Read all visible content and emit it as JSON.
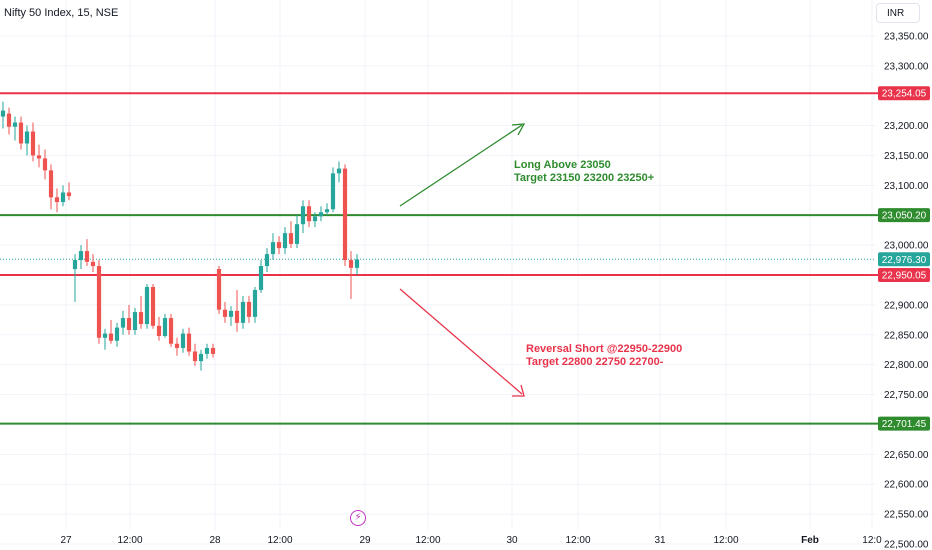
{
  "header": {
    "symbol": "Nifty 50 Index, 15, NSE",
    "currency": "INR"
  },
  "colors": {
    "up": "#26a69a",
    "down": "#ef5350",
    "red_line": "#e8334a",
    "green_line": "#2e8b2e",
    "current": "#26a69a",
    "grid": "#f0f3fa",
    "axis_text": "#131722"
  },
  "chart_data": {
    "type": "candlestick",
    "ylim": [
      22490,
      23410
    ],
    "y_ticks": [
      "23,350.00",
      "23,300.00",
      "23,200.00",
      "23,150.00",
      "23,100.00",
      "23,000.00",
      "22,900.00",
      "22,850.00",
      "22,800.00",
      "22,750.00",
      "22,650.00",
      "22,600.00",
      "22,550.00",
      "22,500.00"
    ],
    "y_tick_values": [
      23350,
      23300,
      23200,
      23150,
      23100,
      23000,
      22900,
      22850,
      22800,
      22750,
      22650,
      22600,
      22550,
      22500
    ],
    "x_ticks": [
      "27",
      "12:00",
      "28",
      "12:00",
      "29",
      "12:00",
      "30",
      "12:00",
      "31",
      "12:00",
      "Feb",
      "12:0"
    ],
    "levels": [
      {
        "label": "23,254.05",
        "value": 23254.05,
        "color": "red"
      },
      {
        "label": "23,050.20",
        "value": 23050.2,
        "color": "green"
      },
      {
        "label": "22,950.05",
        "value": 22950.05,
        "color": "red"
      },
      {
        "label": "22,701.45",
        "value": 22701.45,
        "color": "green"
      }
    ],
    "current_price": {
      "label": "22,976.30",
      "value": 22976.3
    },
    "candles": [
      {
        "o": 23215,
        "h": 23240,
        "l": 23195,
        "c": 23225
      },
      {
        "o": 23220,
        "h": 23230,
        "l": 23185,
        "c": 23198
      },
      {
        "o": 23198,
        "h": 23215,
        "l": 23175,
        "c": 23205
      },
      {
        "o": 23205,
        "h": 23215,
        "l": 23160,
        "c": 23170
      },
      {
        "o": 23170,
        "h": 23200,
        "l": 23150,
        "c": 23190
      },
      {
        "o": 23190,
        "h": 23205,
        "l": 23140,
        "c": 23150
      },
      {
        "o": 23150,
        "h": 23168,
        "l": 23130,
        "c": 23145
      },
      {
        "o": 23145,
        "h": 23160,
        "l": 23110,
        "c": 23125
      },
      {
        "o": 23125,
        "h": 23135,
        "l": 23060,
        "c": 23080
      },
      {
        "o": 23080,
        "h": 23095,
        "l": 23055,
        "c": 23072
      },
      {
        "o": 23072,
        "h": 23100,
        "l": 23065,
        "c": 23088
      },
      {
        "o": 23088,
        "h": 23105,
        "l": 23075,
        "c": 23082
      },
      {
        "o": 22960,
        "h": 22985,
        "l": 22905,
        "c": 22975
      },
      {
        "o": 22975,
        "h": 23000,
        "l": 22960,
        "c": 22990
      },
      {
        "o": 22990,
        "h": 23010,
        "l": 22965,
        "c": 22972
      },
      {
        "o": 22972,
        "h": 22985,
        "l": 22955,
        "c": 22965
      },
      {
        "o": 22965,
        "h": 22975,
        "l": 22835,
        "c": 22845
      },
      {
        "o": 22845,
        "h": 22860,
        "l": 22825,
        "c": 22852
      },
      {
        "o": 22852,
        "h": 22875,
        "l": 22835,
        "c": 22840
      },
      {
        "o": 22840,
        "h": 22870,
        "l": 22830,
        "c": 22862
      },
      {
        "o": 22862,
        "h": 22890,
        "l": 22850,
        "c": 22878
      },
      {
        "o": 22878,
        "h": 22900,
        "l": 22850,
        "c": 22858
      },
      {
        "o": 22858,
        "h": 22895,
        "l": 22850,
        "c": 22888
      },
      {
        "o": 22888,
        "h": 22915,
        "l": 22860,
        "c": 22868
      },
      {
        "o": 22868,
        "h": 22935,
        "l": 22860,
        "c": 22930
      },
      {
        "o": 22930,
        "h": 22935,
        "l": 22860,
        "c": 22865
      },
      {
        "o": 22865,
        "h": 22880,
        "l": 22840,
        "c": 22848
      },
      {
        "o": 22848,
        "h": 22885,
        "l": 22845,
        "c": 22878
      },
      {
        "o": 22878,
        "h": 22885,
        "l": 22830,
        "c": 22835
      },
      {
        "o": 22835,
        "h": 22845,
        "l": 22815,
        "c": 22828
      },
      {
        "o": 22828,
        "h": 22860,
        "l": 22820,
        "c": 22852
      },
      {
        "o": 22852,
        "h": 22862,
        "l": 22815,
        "c": 22822
      },
      {
        "o": 22822,
        "h": 22835,
        "l": 22798,
        "c": 22806
      },
      {
        "o": 22806,
        "h": 22825,
        "l": 22790,
        "c": 22818
      },
      {
        "o": 22818,
        "h": 22835,
        "l": 22810,
        "c": 22828
      },
      {
        "o": 22828,
        "h": 22835,
        "l": 22812,
        "c": 22818
      },
      {
        "o": 22960,
        "h": 22965,
        "l": 22885,
        "c": 22892
      },
      {
        "o": 22892,
        "h": 22905,
        "l": 22870,
        "c": 22880
      },
      {
        "o": 22880,
        "h": 22898,
        "l": 22865,
        "c": 22890
      },
      {
        "o": 22890,
        "h": 22925,
        "l": 22855,
        "c": 22870
      },
      {
        "o": 22870,
        "h": 22915,
        "l": 22860,
        "c": 22905
      },
      {
        "o": 22905,
        "h": 22915,
        "l": 22870,
        "c": 22880
      },
      {
        "o": 22880,
        "h": 22930,
        "l": 22870,
        "c": 22925
      },
      {
        "o": 22925,
        "h": 22975,
        "l": 22920,
        "c": 22965
      },
      {
        "o": 22965,
        "h": 22995,
        "l": 22955,
        "c": 22985
      },
      {
        "o": 22985,
        "h": 23020,
        "l": 22975,
        "c": 23005
      },
      {
        "o": 23005,
        "h": 23015,
        "l": 22985,
        "c": 22995
      },
      {
        "o": 22995,
        "h": 23030,
        "l": 22985,
        "c": 23020
      },
      {
        "o": 23020,
        "h": 23040,
        "l": 22995,
        "c": 23002
      },
      {
        "o": 23002,
        "h": 23050,
        "l": 22995,
        "c": 23035
      },
      {
        "o": 23035,
        "h": 23075,
        "l": 23020,
        "c": 23065
      },
      {
        "o": 23065,
        "h": 23075,
        "l": 23030,
        "c": 23040
      },
      {
        "o": 23040,
        "h": 23055,
        "l": 23030,
        "c": 23048
      },
      {
        "o": 23048,
        "h": 23065,
        "l": 23040,
        "c": 23055
      },
      {
        "o": 23055,
        "h": 23070,
        "l": 23050,
        "c": 23060
      },
      {
        "o": 23060,
        "h": 23130,
        "l": 23055,
        "c": 23120
      },
      {
        "o": 23120,
        "h": 23140,
        "l": 23105,
        "c": 23128
      },
      {
        "o": 23128,
        "h": 23135,
        "l": 22965,
        "c": 22975
      },
      {
        "o": 22975,
        "h": 22990,
        "l": 22910,
        "c": 22962
      },
      {
        "o": 22962,
        "h": 22985,
        "l": 22950,
        "c": 22976
      }
    ]
  },
  "annotations": {
    "long": {
      "line1": "Long Above 23050",
      "line2": "Target 23150 23200 23250+"
    },
    "short": {
      "line1": "Reversal Short @22950-22900",
      "line2": "Target 22800 22750 22700-"
    }
  }
}
